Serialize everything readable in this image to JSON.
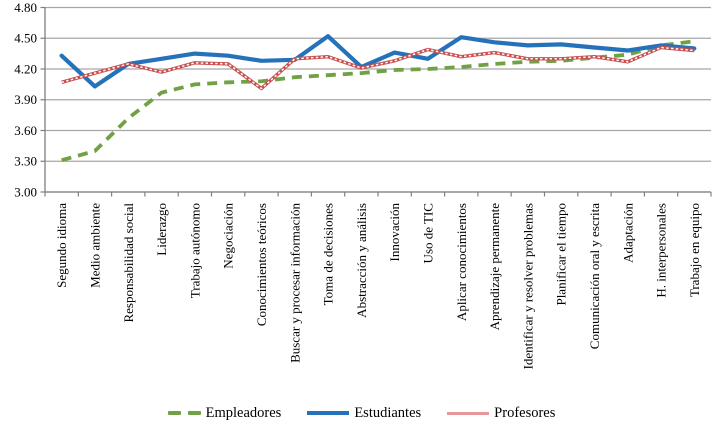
{
  "chart_data": {
    "type": "line",
    "title": "",
    "xlabel": "",
    "ylabel": "",
    "categories": [
      "Segundo idioma",
      "Medio ambiente",
      "Responsabilidad social",
      "Liderazgo",
      "Trabajo autónomo",
      "Negociación",
      "Conocimientos teóricos",
      "Buscar y procesar información",
      "Toma de decisiones",
      "Abstracción y análisis",
      "Innovación",
      "Uso de TIC",
      "Aplicar conocimientos",
      "Aprendizaje permanente",
      "Identificar y resolver problemas",
      "Planificar el tiempo",
      "Comunicación oral y escrita",
      "Adaptación",
      "H. interpersonales",
      "Trabajo en equipo"
    ],
    "series": [
      {
        "name": "Empleadores",
        "color": "#70A144",
        "line_style": "dashed",
        "values": [
          3.31,
          3.4,
          3.72,
          3.97,
          4.05,
          4.07,
          4.08,
          4.12,
          4.14,
          4.16,
          4.19,
          4.2,
          4.22,
          4.25,
          4.27,
          4.28,
          4.31,
          4.34,
          4.43,
          4.47
        ]
      },
      {
        "name": "Estudiantes",
        "color": "#2572BA",
        "line_style": "solid-thick",
        "values": [
          4.33,
          4.03,
          4.25,
          4.3,
          4.35,
          4.33,
          4.28,
          4.29,
          4.52,
          4.22,
          4.36,
          4.3,
          4.51,
          4.46,
          4.43,
          4.44,
          4.41,
          4.38,
          4.43,
          4.4
        ]
      },
      {
        "name": "Profesores",
        "color": "#C94F4F",
        "legend_color": "#E8989B",
        "line_style": "double-rail",
        "values": [
          4.07,
          4.16,
          4.25,
          4.17,
          4.26,
          4.25,
          4.01,
          4.3,
          4.32,
          4.21,
          4.28,
          4.39,
          4.32,
          4.36,
          4.3,
          4.3,
          4.32,
          4.27,
          4.41,
          4.38
        ]
      }
    ],
    "y_axis": {
      "min": 3.0,
      "max": 4.8,
      "step": 0.3,
      "tick_labels": [
        "3.00",
        "3.30",
        "3.60",
        "3.90",
        "4.20",
        "4.50",
        "4.80"
      ]
    },
    "grid": true,
    "legend_position": "bottom",
    "axis_color": "#808080",
    "gridline_color": "#A6A6A6",
    "text_color": "#000000"
  }
}
